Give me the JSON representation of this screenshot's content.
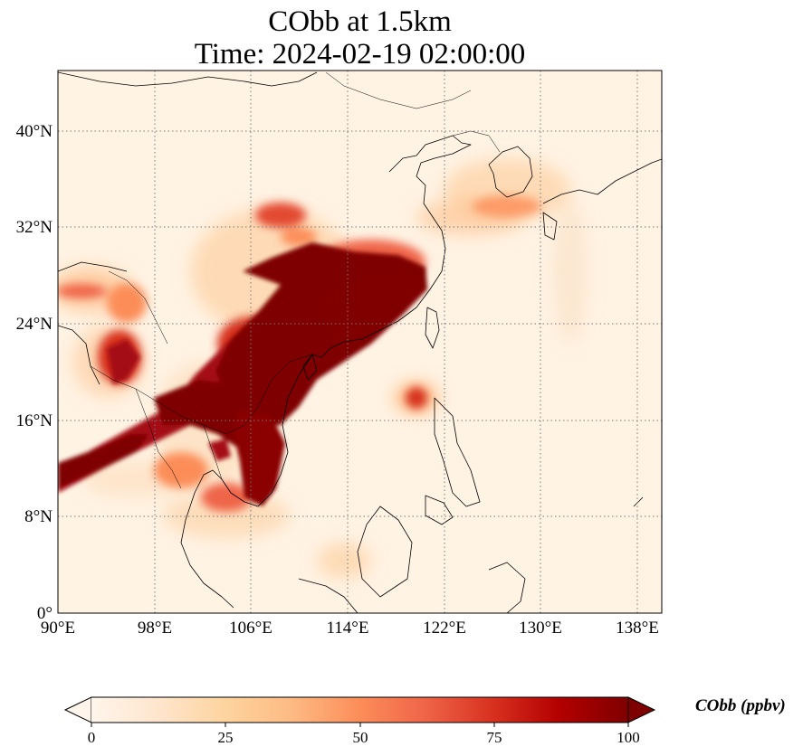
{
  "title": {
    "line1": "CObb at 1.5km",
    "line2": "Time: 2024-02-19 02:00:00"
  },
  "map": {
    "extent": {
      "lon": [
        90,
        140
      ],
      "lat": [
        0,
        45
      ]
    },
    "x_ticks": [
      "90°E",
      "98°E",
      "106°E",
      "114°E",
      "122°E",
      "130°E",
      "138°E"
    ],
    "y_ticks": [
      "0°",
      "8°N",
      "16°N",
      "24°N",
      "32°N",
      "40°N"
    ],
    "gridlines": "dotted"
  },
  "colorbar": {
    "label": "CObb (ppbv)",
    "ticks": [
      "0",
      "25",
      "50",
      "75",
      "100"
    ],
    "min": 0,
    "max": 100,
    "colormap": [
      "#fff5eb",
      "#fee6ce",
      "#fdd0a2",
      "#fdae6b",
      "#fd8d3c",
      "#f16913",
      "#d94801",
      "#a63603",
      "#7f0000"
    ]
  }
}
